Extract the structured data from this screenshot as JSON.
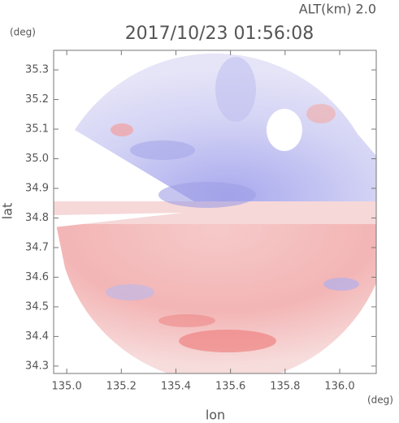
{
  "chart_data": {
    "type": "image",
    "title": "2017/10/23 01:56:08",
    "annotation": "ALT(km) 2.0",
    "y_unit": "(deg)",
    "x_unit": "(deg)",
    "x_label": "lon",
    "y_label": "lat",
    "xlim": [
      134.952,
      136.134
    ],
    "ylim": [
      34.275,
      35.366
    ],
    "xticks": [
      {
        "value": 135,
        "label": "135.0"
      },
      135.2,
      135.4,
      135.6,
      135.8,
      {
        "value": 136,
        "label": "136.0"
      }
    ],
    "yticks": [
      34.3,
      34.4,
      34.5,
      34.6,
      34.7,
      34.8,
      34.9,
      {
        "value": 35,
        "label": "35.0"
      },
      35.1,
      35.2,
      35.3
    ]
  }
}
